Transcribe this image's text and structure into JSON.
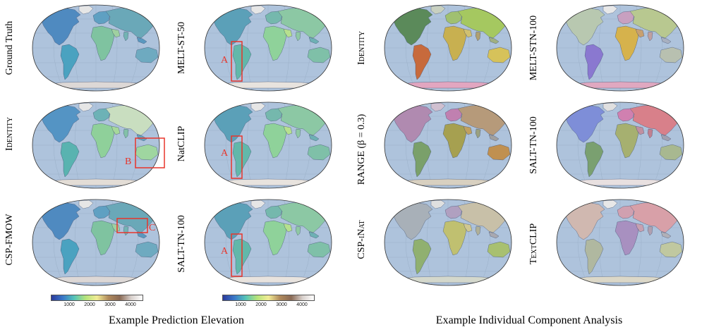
{
  "captions": {
    "left": "Example Prediction Elevation",
    "right": "Example Individual Component Analysis"
  },
  "row_labels": {
    "left_outer": [
      "Ground Truth",
      "Identity",
      "CSP-FMOW"
    ],
    "left_inner": [
      "MELT-ST-50",
      "NatCLIP",
      "SALT-TN-100"
    ],
    "right_outer": [
      "Identity",
      "RANGE (β = 0.3)",
      "CSP-iNat"
    ],
    "right_inner": [
      "MELT-STN-100",
      "SALT-TN-100",
      "TextCLIP"
    ]
  },
  "annotations": {
    "a": "A",
    "b": "B",
    "c": "C"
  },
  "colorbar": {
    "ticks": [
      "1000",
      "2000",
      "3000",
      "4000"
    ],
    "colors": [
      "#2b3a9c",
      "#3a78c8",
      "#55c3b8",
      "#b5e37a",
      "#f2ec95",
      "#b08a5c",
      "#8a6a55",
      "#d8d0cc",
      "#ffffff"
    ]
  },
  "colors": {
    "ocean": "#aec3dc",
    "annotation": "#e8352b"
  }
}
